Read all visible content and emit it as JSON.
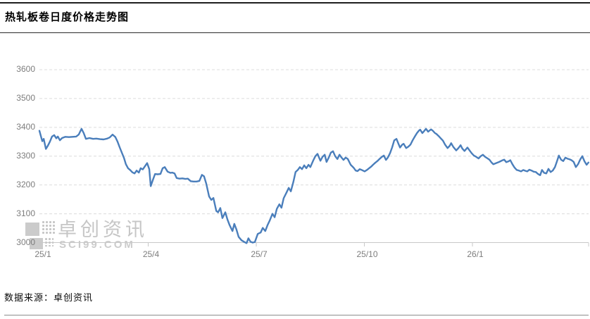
{
  "header": {
    "title": "热轧板卷日度价格走势图"
  },
  "footer": {
    "source_label": "数据来源：卓创资讯"
  },
  "watermark": {
    "brand": "卓创资讯",
    "site": "SCI99.COM"
  },
  "colors": {
    "line": "#4a7ebb",
    "gridline": "#dcdcdc",
    "axis": "#c8c8c8",
    "tick_label": "#7d7d7d",
    "watermark": "#c6c6c6"
  },
  "chart_data": {
    "type": "line",
    "title": "热轧板卷日度价格走势图",
    "xlabel": "",
    "ylabel": "",
    "ylim": [
      3000,
      3600
    ],
    "y_ticks": [
      3600,
      3500,
      3400,
      3300,
      3200,
      3100,
      3000
    ],
    "x_ticks": [
      {
        "t": 0,
        "label": "25/1"
      },
      {
        "t": 3,
        "label": "25/4"
      },
      {
        "t": 6,
        "label": "25/7"
      },
      {
        "t": 9,
        "label": "25/10"
      },
      {
        "t": 12,
        "label": "26/1"
      }
    ],
    "x_unit": "months since 2025-01",
    "x_end": 15.22,
    "grid": "horizontal-dashed",
    "legend": "none",
    "series_name": "热轧板卷日度价格",
    "points": [
      [
        -0.02,
        3388
      ],
      [
        0.02,
        3370
      ],
      [
        0.06,
        3352
      ],
      [
        0.1,
        3360
      ],
      [
        0.16,
        3325
      ],
      [
        0.21,
        3335
      ],
      [
        0.27,
        3350
      ],
      [
        0.33,
        3368
      ],
      [
        0.39,
        3373
      ],
      [
        0.45,
        3362
      ],
      [
        0.49,
        3368
      ],
      [
        0.55,
        3355
      ],
      [
        0.61,
        3363
      ],
      [
        0.7,
        3367
      ],
      [
        0.8,
        3366
      ],
      [
        0.9,
        3367
      ],
      [
        1.0,
        3368
      ],
      [
        1.07,
        3375
      ],
      [
        1.15,
        3395
      ],
      [
        1.21,
        3380
      ],
      [
        1.27,
        3360
      ],
      [
        1.37,
        3363
      ],
      [
        1.47,
        3360
      ],
      [
        1.56,
        3361
      ],
      [
        1.66,
        3359
      ],
      [
        1.76,
        3358
      ],
      [
        1.86,
        3361
      ],
      [
        1.93,
        3365
      ],
      [
        2.01,
        3375
      ],
      [
        2.09,
        3366
      ],
      [
        2.15,
        3350
      ],
      [
        2.21,
        3330
      ],
      [
        2.27,
        3311
      ],
      [
        2.33,
        3293
      ],
      [
        2.38,
        3272
      ],
      [
        2.44,
        3258
      ],
      [
        2.5,
        3252
      ],
      [
        2.56,
        3244
      ],
      [
        2.62,
        3240
      ],
      [
        2.68,
        3250
      ],
      [
        2.74,
        3243
      ],
      [
        2.79,
        3258
      ],
      [
        2.85,
        3254
      ],
      [
        2.91,
        3265
      ],
      [
        2.97,
        3276
      ],
      [
        3.03,
        3255
      ],
      [
        3.07,
        3196
      ],
      [
        3.13,
        3218
      ],
      [
        3.19,
        3238
      ],
      [
        3.26,
        3237
      ],
      [
        3.34,
        3238
      ],
      [
        3.4,
        3258
      ],
      [
        3.46,
        3262
      ],
      [
        3.54,
        3246
      ],
      [
        3.62,
        3242
      ],
      [
        3.67,
        3243
      ],
      [
        3.73,
        3240
      ],
      [
        3.79,
        3224
      ],
      [
        3.87,
        3222
      ],
      [
        3.95,
        3223
      ],
      [
        4.03,
        3221
      ],
      [
        4.1,
        3222
      ],
      [
        4.18,
        3213
      ],
      [
        4.26,
        3212
      ],
      [
        4.34,
        3212
      ],
      [
        4.42,
        3214
      ],
      [
        4.49,
        3235
      ],
      [
        4.55,
        3230
      ],
      [
        4.61,
        3205
      ],
      [
        4.69,
        3160
      ],
      [
        4.75,
        3148
      ],
      [
        4.81,
        3155
      ],
      [
        4.89,
        3110
      ],
      [
        4.94,
        3105
      ],
      [
        5.0,
        3120
      ],
      [
        5.06,
        3085
      ],
      [
        5.14,
        3105
      ],
      [
        5.2,
        3080
      ],
      [
        5.26,
        3060
      ],
      [
        5.34,
        3040
      ],
      [
        5.39,
        3065
      ],
      [
        5.45,
        3045
      ],
      [
        5.51,
        3020
      ],
      [
        5.59,
        3008
      ],
      [
        5.67,
        3002
      ],
      [
        5.73,
        2998
      ],
      [
        5.78,
        3015
      ],
      [
        5.84,
        3003
      ],
      [
        5.9,
        3000
      ],
      [
        5.96,
        3002
      ],
      [
        6.04,
        3030
      ],
      [
        6.12,
        3035
      ],
      [
        6.18,
        3051
      ],
      [
        6.25,
        3040
      ],
      [
        6.31,
        3060
      ],
      [
        6.37,
        3076
      ],
      [
        6.45,
        3100
      ],
      [
        6.51,
        3088
      ],
      [
        6.57,
        3117
      ],
      [
        6.64,
        3133
      ],
      [
        6.7,
        3121
      ],
      [
        6.76,
        3154
      ],
      [
        6.84,
        3174
      ],
      [
        6.9,
        3190
      ],
      [
        6.96,
        3178
      ],
      [
        7.03,
        3211
      ],
      [
        7.09,
        3245
      ],
      [
        7.15,
        3252
      ],
      [
        7.21,
        3262
      ],
      [
        7.27,
        3255
      ],
      [
        7.33,
        3268
      ],
      [
        7.39,
        3258
      ],
      [
        7.45,
        3270
      ],
      [
        7.5,
        3262
      ],
      [
        7.58,
        3285
      ],
      [
        7.64,
        3300
      ],
      [
        7.7,
        3308
      ],
      [
        7.78,
        3284
      ],
      [
        7.84,
        3298
      ],
      [
        7.9,
        3305
      ],
      [
        7.95,
        3280
      ],
      [
        8.01,
        3295
      ],
      [
        8.07,
        3312
      ],
      [
        8.13,
        3317
      ],
      [
        8.19,
        3300
      ],
      [
        8.25,
        3290
      ],
      [
        8.31,
        3305
      ],
      [
        8.36,
        3296
      ],
      [
        8.42,
        3287
      ],
      [
        8.48,
        3295
      ],
      [
        8.54,
        3290
      ],
      [
        8.62,
        3270
      ],
      [
        8.7,
        3260
      ],
      [
        8.76,
        3250
      ],
      [
        8.81,
        3248
      ],
      [
        8.87,
        3255
      ],
      [
        8.93,
        3252
      ],
      [
        9.01,
        3247
      ],
      [
        9.07,
        3252
      ],
      [
        9.13,
        3258
      ],
      [
        9.19,
        3264
      ],
      [
        9.24,
        3270
      ],
      [
        9.3,
        3277
      ],
      [
        9.36,
        3283
      ],
      [
        9.42,
        3290
      ],
      [
        9.48,
        3297
      ],
      [
        9.54,
        3302
      ],
      [
        9.6,
        3287
      ],
      [
        9.65,
        3295
      ],
      [
        9.71,
        3310
      ],
      [
        9.77,
        3330
      ],
      [
        9.83,
        3355
      ],
      [
        9.89,
        3360
      ],
      [
        9.95,
        3342
      ],
      [
        9.99,
        3330
      ],
      [
        10.05,
        3340
      ],
      [
        10.09,
        3343
      ],
      [
        10.16,
        3328
      ],
      [
        10.22,
        3333
      ],
      [
        10.28,
        3340
      ],
      [
        10.34,
        3355
      ],
      [
        10.4,
        3368
      ],
      [
        10.46,
        3380
      ],
      [
        10.51,
        3388
      ],
      [
        10.55,
        3392
      ],
      [
        10.61,
        3380
      ],
      [
        10.65,
        3386
      ],
      [
        10.71,
        3395
      ],
      [
        10.77,
        3385
      ],
      [
        10.85,
        3393
      ],
      [
        10.9,
        3388
      ],
      [
        10.96,
        3380
      ],
      [
        11.0,
        3377
      ],
      [
        11.06,
        3370
      ],
      [
        11.12,
        3362
      ],
      [
        11.18,
        3354
      ],
      [
        11.24,
        3340
      ],
      [
        11.31,
        3328
      ],
      [
        11.37,
        3336
      ],
      [
        11.41,
        3345
      ],
      [
        11.47,
        3332
      ],
      [
        11.55,
        3320
      ],
      [
        11.61,
        3328
      ],
      [
        11.67,
        3338
      ],
      [
        11.72,
        3326
      ],
      [
        11.78,
        3318
      ],
      [
        11.86,
        3330
      ],
      [
        11.92,
        3320
      ],
      [
        11.98,
        3310
      ],
      [
        12.04,
        3302
      ],
      [
        12.1,
        3298
      ],
      [
        12.17,
        3292
      ],
      [
        12.23,
        3300
      ],
      [
        12.29,
        3305
      ],
      [
        12.35,
        3298
      ],
      [
        12.41,
        3293
      ],
      [
        12.47,
        3288
      ],
      [
        12.53,
        3278
      ],
      [
        12.58,
        3272
      ],
      [
        12.64,
        3275
      ],
      [
        12.7,
        3278
      ],
      [
        12.76,
        3281
      ],
      [
        12.82,
        3285
      ],
      [
        12.88,
        3288
      ],
      [
        12.94,
        3279
      ],
      [
        13.0,
        3282
      ],
      [
        13.05,
        3286
      ],
      [
        13.11,
        3272
      ],
      [
        13.17,
        3260
      ],
      [
        13.23,
        3252
      ],
      [
        13.29,
        3250
      ],
      [
        13.35,
        3247
      ],
      [
        13.41,
        3252
      ],
      [
        13.47,
        3249
      ],
      [
        13.52,
        3247
      ],
      [
        13.58,
        3253
      ],
      [
        13.64,
        3250
      ],
      [
        13.7,
        3246
      ],
      [
        13.76,
        3245
      ],
      [
        13.82,
        3238
      ],
      [
        13.88,
        3234
      ],
      [
        13.93,
        3252
      ],
      [
        13.99,
        3242
      ],
      [
        14.05,
        3240
      ],
      [
        14.11,
        3256
      ],
      [
        14.17,
        3245
      ],
      [
        14.23,
        3250
      ],
      [
        14.29,
        3262
      ],
      [
        14.34,
        3280
      ],
      [
        14.4,
        3302
      ],
      [
        14.46,
        3288
      ],
      [
        14.52,
        3283
      ],
      [
        14.58,
        3295
      ],
      [
        14.64,
        3291
      ],
      [
        14.7,
        3289
      ],
      [
        14.75,
        3286
      ],
      [
        14.81,
        3280
      ],
      [
        14.87,
        3262
      ],
      [
        14.93,
        3272
      ],
      [
        14.99,
        3288
      ],
      [
        15.05,
        3300
      ],
      [
        15.11,
        3282
      ],
      [
        15.17,
        3270
      ],
      [
        15.22,
        3278
      ]
    ]
  }
}
